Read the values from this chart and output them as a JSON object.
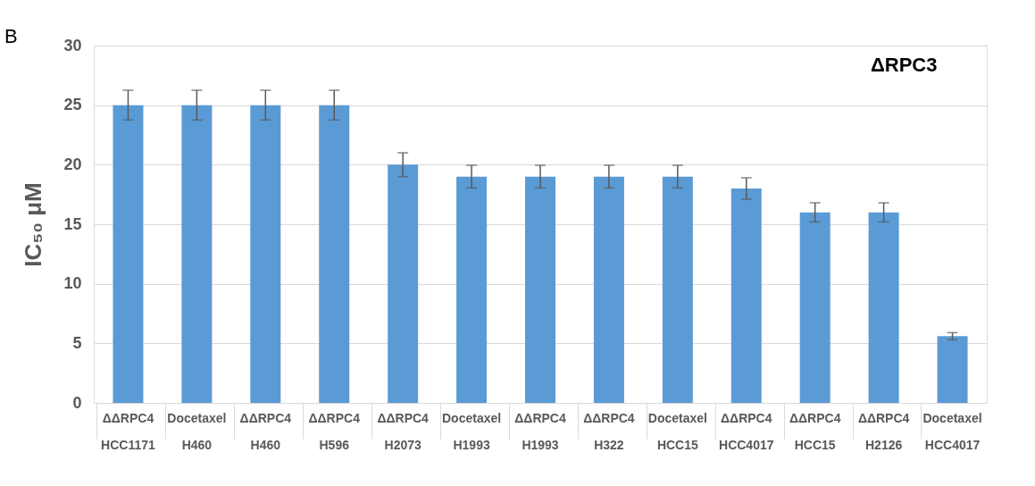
{
  "chart_data": {
    "type": "bar",
    "ylabel": "IC₅₀ μM",
    "categories": [
      "ΔΔRPC4\nHCC1171",
      "Docetaxel\nH460",
      "ΔΔRPC4\nH460",
      "ΔΔRPC4\nH596",
      "ΔΔRPC4\nH2073",
      "Docetaxel\nH1993",
      "ΔΔRPC4\nH1993",
      "ΔΔRPC4\nH322",
      "Docetaxel\nHCC15",
      "ΔΔRPC4\nHCC4017",
      "ΔΔRPC4\nHCC15",
      "ΔΔRPC4\nH2126",
      "Docetaxel\nHCC4017"
    ],
    "values": [
      25,
      25,
      25,
      25,
      20,
      19,
      19,
      19,
      19,
      18,
      16,
      16,
      5.6
    ],
    "errors": [
      1.25,
      1.25,
      1.25,
      1.25,
      1,
      0.95,
      0.95,
      0.95,
      0.95,
      0.9,
      0.8,
      0.8,
      0.3
    ],
    "color": "#5b9bd5",
    "ylim": [
      0,
      30
    ],
    "yticks": [
      0,
      5,
      10,
      15,
      20,
      25,
      30
    ],
    "grid": "y",
    "annotations": [
      "B",
      "ΔRPC3"
    ]
  }
}
